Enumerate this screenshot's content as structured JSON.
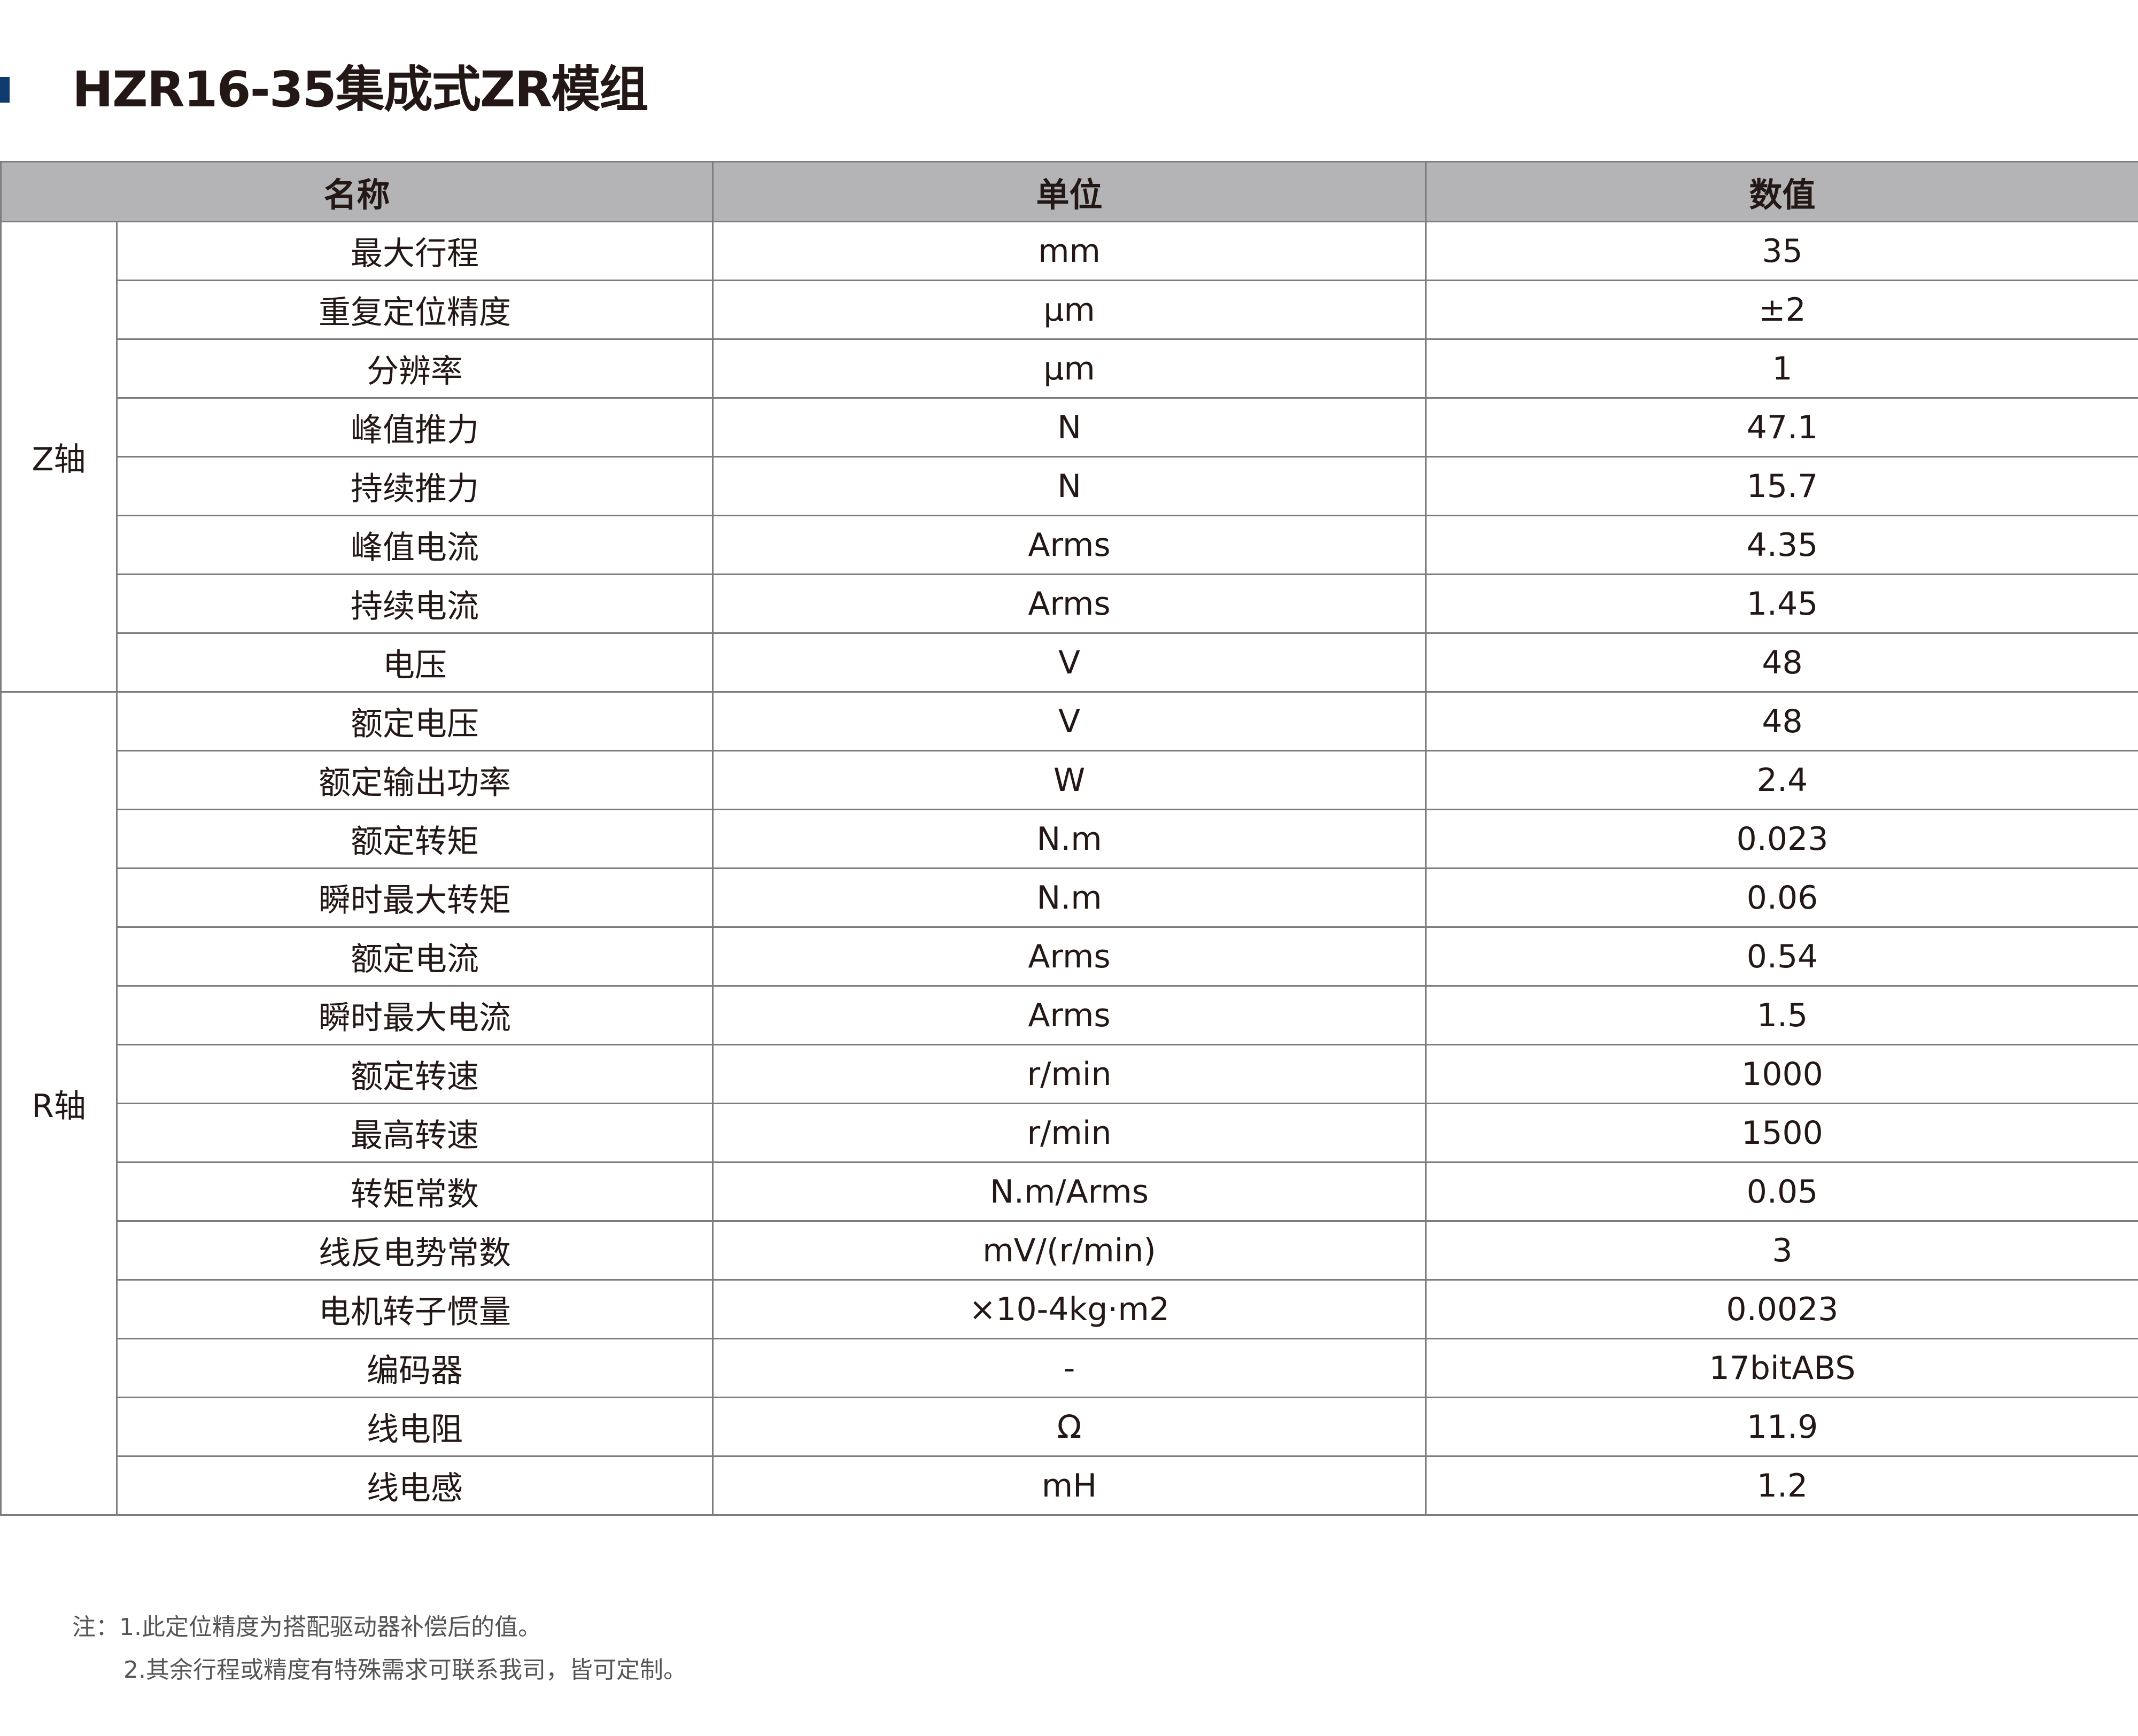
{
  "title": "HZR16-35集成式ZR模组",
  "accent_color": "#0f3a6e",
  "header": {
    "name": "名称",
    "unit": "单位",
    "value": "数值"
  },
  "groups": [
    {
      "label": "Z轴",
      "rows": [
        {
          "name": "最大行程",
          "unit": "mm",
          "value": "35"
        },
        {
          "name": "重复定位精度",
          "unit": "μm",
          "value": "±2"
        },
        {
          "name": "分辨率",
          "unit": "μm",
          "value": "1"
        },
        {
          "name": "峰值推力",
          "unit": "N",
          "value": "47.1"
        },
        {
          "name": "持续推力",
          "unit": "N",
          "value": "15.7"
        },
        {
          "name": "峰值电流",
          "unit": "Arms",
          "value": "4.35"
        },
        {
          "name": "持续电流",
          "unit": "Arms",
          "value": "1.45"
        },
        {
          "name": "电压",
          "unit": "V",
          "value": "48"
        }
      ]
    },
    {
      "label": "R轴",
      "rows": [
        {
          "name": "额定电压",
          "unit": "V",
          "value": "48"
        },
        {
          "name": "额定输出功率",
          "unit": "W",
          "value": "2.4"
        },
        {
          "name": "额定转矩",
          "unit": "N.m",
          "value": "0.023"
        },
        {
          "name": "瞬时最大转矩",
          "unit": "N.m",
          "value": "0.06"
        },
        {
          "name": "额定电流",
          "unit": "Arms",
          "value": "0.54"
        },
        {
          "name": "瞬时最大电流",
          "unit": "Arms",
          "value": "1.5"
        },
        {
          "name": "额定转速",
          "unit": "r/min",
          "value": "1000"
        },
        {
          "name": "最高转速",
          "unit": "r/min",
          "value": "1500"
        },
        {
          "name": "转矩常数",
          "unit": "N.m/Arms",
          "value": "0.05"
        },
        {
          "name": "线反电势常数",
          "unit": "mV/(r/min)",
          "value": "3"
        },
        {
          "name": "电机转子惯量",
          "unit": "×10-4kg·m2",
          "value": "0.0023"
        },
        {
          "name": "编码器",
          "unit": "-",
          "value": "17bitABS"
        },
        {
          "name": "线电阻",
          "unit": "Ω",
          "value": "11.9"
        },
        {
          "name": "线电感",
          "unit": "mH",
          "value": "1.2"
        }
      ]
    }
  ],
  "notes": [
    "注：1.此定位精度为搭配驱动器补偿后的值。",
    "2.其余行程或精度有特殊需求可联系我司，皆可定制。"
  ]
}
